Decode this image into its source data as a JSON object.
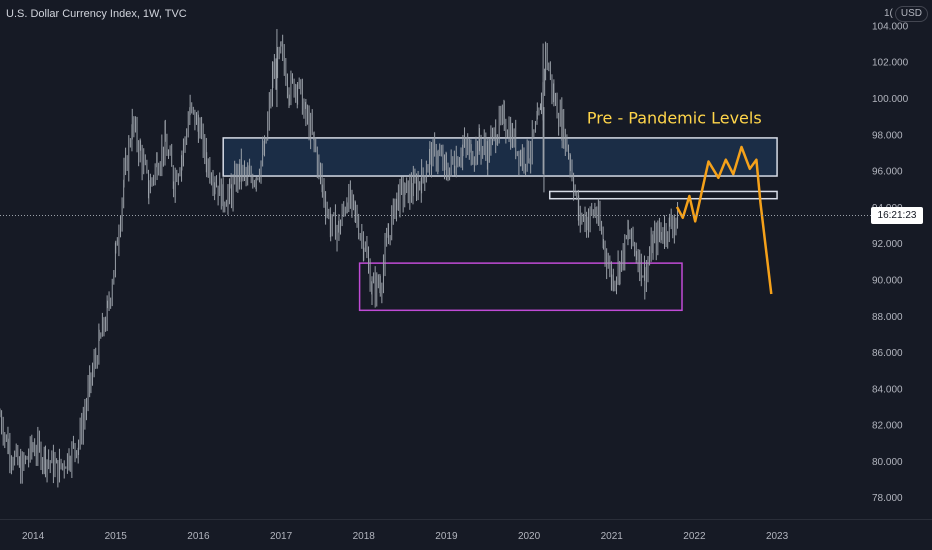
{
  "header": {
    "title": "U.S. Dollar Currency Index, 1W, TVC",
    "currency_prefix": "1(",
    "currency": "USD"
  },
  "price_tag": "16:21:23",
  "colors": {
    "background": "#161a25",
    "candles": "#9aa0a8",
    "projection": "#f5a11a",
    "resistance_box_stroke": "#d6dbe6",
    "resistance_box_fill": "#1e3451",
    "support_box_stroke": "#c04bd6",
    "annotation": "#ffd54a"
  },
  "chart_data": {
    "type": "line",
    "title": "U.S. Dollar Currency Index, 1W, TVC",
    "xlabel": "",
    "ylabel": "",
    "x_ticks": [
      "2014",
      "2015",
      "2016",
      "2017",
      "2018",
      "2019",
      "2020",
      "2021",
      "2022",
      "2023"
    ],
    "y_ticks": [
      "78.000",
      "80.000",
      "82.000",
      "84.000",
      "86.000",
      "88.000",
      "90.000",
      "92.000",
      "94.000",
      "96.000",
      "98.000",
      "100.000",
      "102.000",
      "104.000"
    ],
    "xlim": [
      2013.6,
      2024.1
    ],
    "ylim": [
      76.8,
      105.4
    ],
    "grid": false,
    "series": [
      {
        "style": "weekly-price",
        "points": [
          [
            2013.6,
            82.5
          ],
          [
            2013.7,
            80.8
          ],
          [
            2013.85,
            79.5
          ],
          [
            2014.0,
            80.8
          ],
          [
            2014.15,
            80.2
          ],
          [
            2014.3,
            79.5
          ],
          [
            2014.45,
            80.4
          ],
          [
            2014.55,
            81.0
          ],
          [
            2014.7,
            84.5
          ],
          [
            2014.8,
            86.5
          ],
          [
            2014.9,
            88.2
          ],
          [
            2015.0,
            91.5
          ],
          [
            2015.1,
            95.5
          ],
          [
            2015.2,
            98.5
          ],
          [
            2015.3,
            97.0
          ],
          [
            2015.4,
            95.0
          ],
          [
            2015.5,
            96.5
          ],
          [
            2015.6,
            97.5
          ],
          [
            2015.7,
            95.5
          ],
          [
            2015.8,
            96.8
          ],
          [
            2015.9,
            99.3
          ],
          [
            2016.0,
            98.5
          ],
          [
            2016.1,
            96.5
          ],
          [
            2016.2,
            95.5
          ],
          [
            2016.3,
            94.5
          ],
          [
            2016.4,
            94.8
          ],
          [
            2016.5,
            96.0
          ],
          [
            2016.6,
            95.5
          ],
          [
            2016.7,
            95.8
          ],
          [
            2016.8,
            97.0
          ],
          [
            2016.9,
            101.2
          ],
          [
            2017.0,
            102.5
          ],
          [
            2017.1,
            100.5
          ],
          [
            2017.2,
            100.8
          ],
          [
            2017.3,
            99.0
          ],
          [
            2017.4,
            97.5
          ],
          [
            2017.5,
            95.0
          ],
          [
            2017.6,
            93.0
          ],
          [
            2017.7,
            92.8
          ],
          [
            2017.8,
            94.5
          ],
          [
            2017.9,
            93.5
          ],
          [
            2018.0,
            92.0
          ],
          [
            2018.1,
            89.5
          ],
          [
            2018.2,
            89.8
          ],
          [
            2018.3,
            92.5
          ],
          [
            2018.4,
            94.5
          ],
          [
            2018.5,
            94.8
          ],
          [
            2018.6,
            95.0
          ],
          [
            2018.7,
            95.5
          ],
          [
            2018.8,
            96.8
          ],
          [
            2018.9,
            96.8
          ],
          [
            2019.0,
            96.0
          ],
          [
            2019.1,
            96.5
          ],
          [
            2019.2,
            97.3
          ],
          [
            2019.3,
            97.0
          ],
          [
            2019.4,
            97.5
          ],
          [
            2019.5,
            97.0
          ],
          [
            2019.6,
            98.2
          ],
          [
            2019.7,
            98.8
          ],
          [
            2019.8,
            97.8
          ],
          [
            2019.9,
            96.8
          ],
          [
            2020.0,
            97.0
          ],
          [
            2020.1,
            98.5
          ],
          [
            2020.15,
            99.5
          ],
          [
            2020.2,
            102.5
          ],
          [
            2020.3,
            100.0
          ],
          [
            2020.4,
            98.5
          ],
          [
            2020.5,
            96.5
          ],
          [
            2020.6,
            93.5
          ],
          [
            2020.7,
            93.3
          ],
          [
            2020.8,
            93.8
          ],
          [
            2020.9,
            92.0
          ],
          [
            2021.0,
            90.0
          ],
          [
            2021.1,
            90.8
          ],
          [
            2021.2,
            92.5
          ],
          [
            2021.3,
            91.5
          ],
          [
            2021.4,
            90.2
          ],
          [
            2021.5,
            92.0
          ],
          [
            2021.6,
            92.6
          ],
          [
            2021.7,
            93.0
          ],
          [
            2021.8,
            93.5
          ]
        ]
      },
      {
        "style": "projection",
        "points": [
          [
            2021.79,
            94.0
          ],
          [
            2021.86,
            93.4
          ],
          [
            2021.94,
            94.6
          ],
          [
            2022.01,
            93.2
          ],
          [
            2022.17,
            96.5
          ],
          [
            2022.29,
            95.6
          ],
          [
            2022.38,
            96.6
          ],
          [
            2022.47,
            95.8
          ],
          [
            2022.57,
            97.3
          ],
          [
            2022.67,
            96.1
          ],
          [
            2022.75,
            96.6
          ],
          [
            2022.8,
            94.2
          ],
          [
            2022.93,
            89.2
          ]
        ]
      }
    ],
    "annotations": [
      {
        "label": "Pre - Pandemic Levels",
        "anchor": [
          2020.7,
          98.6
        ],
        "style": "text"
      },
      {
        "label": "",
        "style": "resistance-zone",
        "x0": 2016.3,
        "x1": 2023.0,
        "y0": 95.7,
        "y1": 97.8
      },
      {
        "label": "",
        "style": "support-zone",
        "x0": 2017.95,
        "x1": 2021.85,
        "y0": 88.3,
        "y1": 90.9
      },
      {
        "label": "",
        "style": "thin-zone",
        "x0": 2020.25,
        "x1": 2023.0,
        "y0": 94.45,
        "y1": 94.85
      }
    ],
    "current_price": 94.6
  }
}
